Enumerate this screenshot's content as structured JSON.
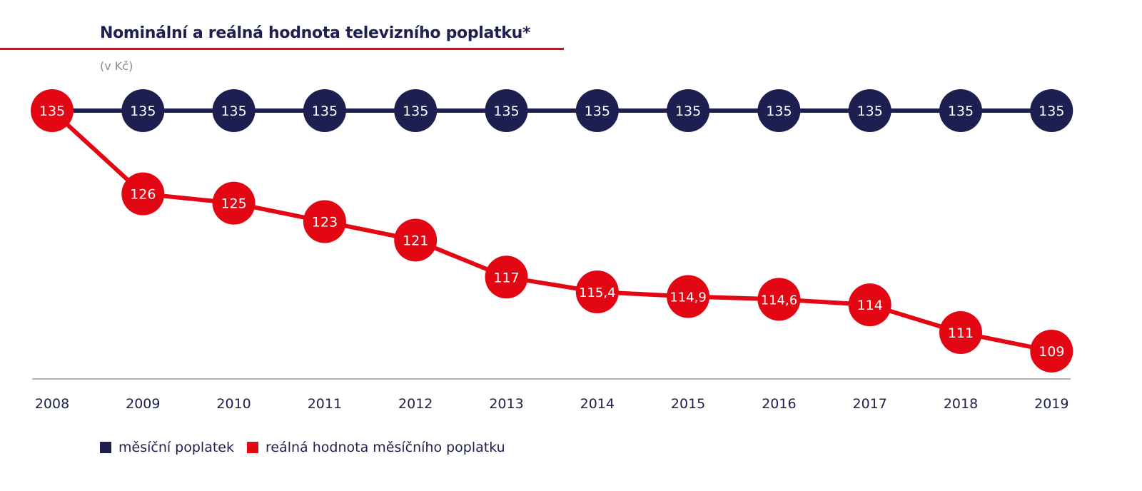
{
  "chart_data": {
    "type": "line",
    "title": "Nominální a reálná hodnota televizního poplatku*",
    "subtitle": "(v Kč)",
    "categories": [
      "2008",
      "2009",
      "2010",
      "2011",
      "2012",
      "2013",
      "2014",
      "2015",
      "2016",
      "2017",
      "2018",
      "2019"
    ],
    "series": [
      {
        "name": "měsíční poplatek",
        "color": "#1c1f4f",
        "values": [
          135,
          135,
          135,
          135,
          135,
          135,
          135,
          135,
          135,
          135,
          135,
          135
        ],
        "labels": [
          "135",
          "135",
          "135",
          "135",
          "135",
          "135",
          "135",
          "135",
          "135",
          "135",
          "135",
          "135"
        ]
      },
      {
        "name": "reálná hodnota měsíčního poplatku",
        "color": "#e30613",
        "values": [
          135,
          126,
          125,
          123,
          121,
          117,
          115.4,
          114.9,
          114.6,
          114,
          111,
          109
        ],
        "labels": [
          "135",
          "126",
          "125",
          "123",
          "121",
          "117",
          "115,4",
          "114,9",
          "114,6",
          "114",
          "111",
          "109"
        ]
      }
    ],
    "legend": "bottom-left",
    "grid": false
  }
}
